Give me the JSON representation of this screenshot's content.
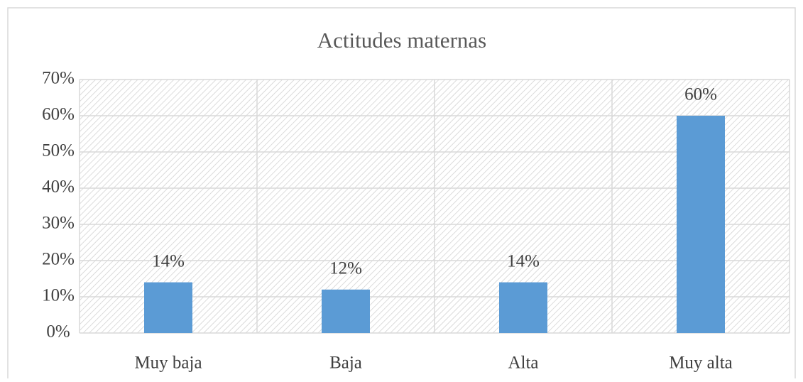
{
  "chart_data": {
    "type": "bar",
    "title": "Actitudes maternas",
    "categories": [
      "Muy baja",
      "Baja",
      "Alta",
      "Muy alta"
    ],
    "values": [
      14,
      12,
      14,
      60
    ],
    "value_labels": [
      "14%",
      "12%",
      "14%",
      "60%"
    ],
    "color": "#5b9bd5",
    "ylim": [
      0,
      70
    ],
    "yticks": [
      {
        "value": 0,
        "label": "0%"
      },
      {
        "value": 10,
        "label": "10%"
      },
      {
        "value": 20,
        "label": "20%"
      },
      {
        "value": 30,
        "label": "30%"
      },
      {
        "value": 40,
        "label": "40%"
      },
      {
        "value": 50,
        "label": "50%"
      },
      {
        "value": 60,
        "label": "60%"
      },
      {
        "value": 70,
        "label": "70%"
      }
    ],
    "grid": true
  }
}
